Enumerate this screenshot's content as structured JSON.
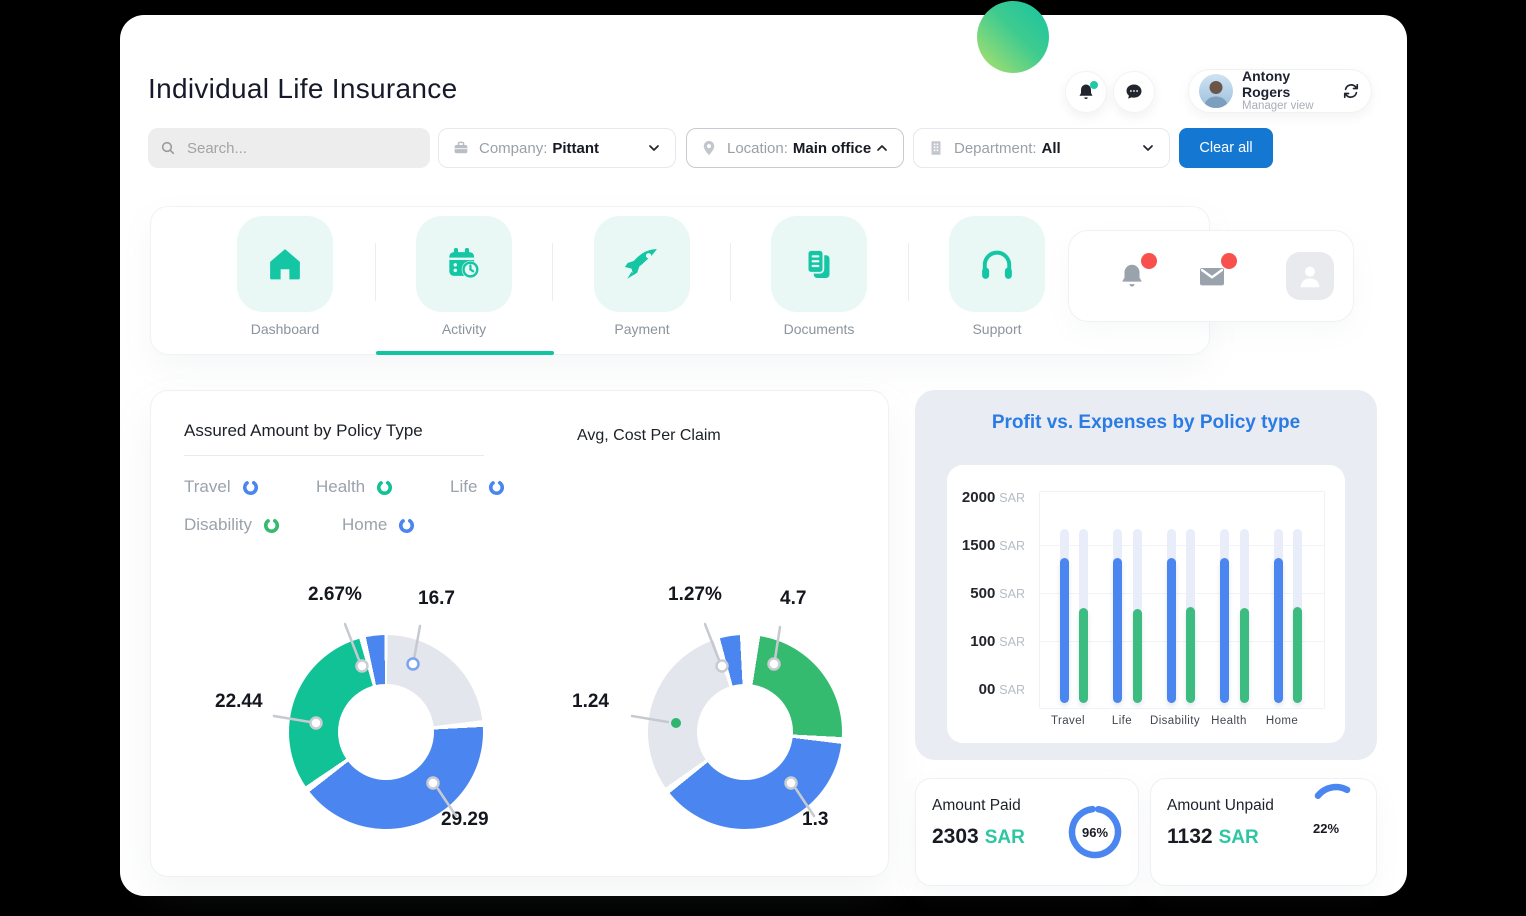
{
  "page_title": "Individual Life Insurance",
  "header": {
    "search_placeholder": "Search...",
    "filters": [
      {
        "label": "Company:",
        "value": "Pittant",
        "icon": "briefcase-icon",
        "chevron": "down"
      },
      {
        "label": "Location:",
        "value": "Main office",
        "icon": "pin-icon",
        "chevron": "up"
      },
      {
        "label": "Department:",
        "value": "All",
        "icon": "building-icon",
        "chevron": "down"
      }
    ],
    "clear_label": "Clear all",
    "user": {
      "name": "Antony Rogers",
      "role": "Manager view"
    },
    "icons": [
      "bell-icon",
      "chat-icon",
      "sync-icon"
    ]
  },
  "nav": {
    "active": "Activity",
    "tabs": [
      {
        "label": "Dashboard",
        "icon": "home-icon"
      },
      {
        "label": "Activity",
        "icon": "calendar-clock-icon"
      },
      {
        "label": "Payment",
        "icon": "rocket-icon"
      },
      {
        "label": "Documents",
        "icon": "documents-icon"
      },
      {
        "label": "Support",
        "icon": "headphones-icon"
      }
    ],
    "notification_panel_icons": [
      "bell-icon",
      "mail-icon",
      "user-icon"
    ],
    "badge_color": "#f8504d"
  },
  "assured_card": {
    "title": "Assured Amount by Policy Type",
    "subtitle": "Avg, Cost Per Claim",
    "legend": [
      {
        "label": "Travel",
        "color": "#4b86f0"
      },
      {
        "label": "Health",
        "color": "#10c296"
      },
      {
        "label": "Life",
        "color": "#4b86f0"
      },
      {
        "label": "Disability",
        "color": "#35bb6f"
      },
      {
        "label": "Home",
        "color": "#4b86f0"
      }
    ]
  },
  "chart_data": [
    {
      "type": "pie",
      "donut": true,
      "title": "Assured Amount by Policy Type",
      "segments": [
        {
          "label": "16.7",
          "value": 16.7,
          "color": "#e3e6ec",
          "start": 1,
          "end": 83
        },
        {
          "label": "29.29",
          "value": 29.29,
          "color": "#4b86f0",
          "start": 87,
          "end": 232
        },
        {
          "label": "22.44",
          "value": 22.44,
          "color": "#10c296",
          "start": 236,
          "end": 344
        },
        {
          "label": "2.67%",
          "value": 2.67,
          "color": "#4b86f0",
          "start": 348,
          "end": 359
        }
      ]
    },
    {
      "type": "pie",
      "donut": true,
      "title": "Avg, Cost Per Claim",
      "segments": [
        {
          "label": "4.7",
          "value": 4.7,
          "color": "#35bb6f",
          "start": 9,
          "end": 93
        },
        {
          "label": "1.3",
          "value": 1.3,
          "color": "#4b86f0",
          "start": 97,
          "end": 231
        },
        {
          "label": "1.24",
          "value": 1.24,
          "color": "#e3e6ec",
          "start": 235,
          "end": 341
        },
        {
          "label": "1.27%",
          "value": 1.27,
          "color": "#4b86f0",
          "start": 345,
          "end": 357
        }
      ]
    },
    {
      "type": "bar",
      "title": "Profit vs. Expenses by Policy type",
      "categories": [
        "Travel",
        "Life",
        "Disability",
        "Health",
        "Home"
      ],
      "series": [
        {
          "name": "Profit",
          "color": "#4b86f0",
          "values": [
            1250,
            1240,
            1255,
            1255,
            1255
          ]
        },
        {
          "name": "Expenses",
          "color": "#3dbc81",
          "values": [
            420,
            410,
            425,
            420,
            425
          ]
        }
      ],
      "track_value": 1650,
      "axis_values": [
        0,
        100,
        500,
        1500,
        2000
      ],
      "yticks": [
        {
          "num": "2000",
          "unit": "SAR"
        },
        {
          "num": "1500",
          "unit": "SAR"
        },
        {
          "num": "500",
          "unit": "SAR"
        },
        {
          "num": "100",
          "unit": "SAR"
        },
        {
          "num": "00",
          "unit": "SAR"
        }
      ],
      "legend_position": "none",
      "grid": true
    }
  ],
  "kpis": [
    {
      "label": "Amount Paid",
      "value": "2303",
      "currency": "SAR",
      "percent": "96%"
    },
    {
      "label": "Amount Unpaid",
      "value": "1132",
      "currency": "SAR",
      "percent": "22%"
    }
  ],
  "accent_colors": {
    "teal": "#12c5a2",
    "blue": "#4b86f0",
    "button_blue": "#1478d2",
    "title_blue": "#2a7be4",
    "badge_red": "#f8504d",
    "sar_teal": "#2cc7a2"
  }
}
